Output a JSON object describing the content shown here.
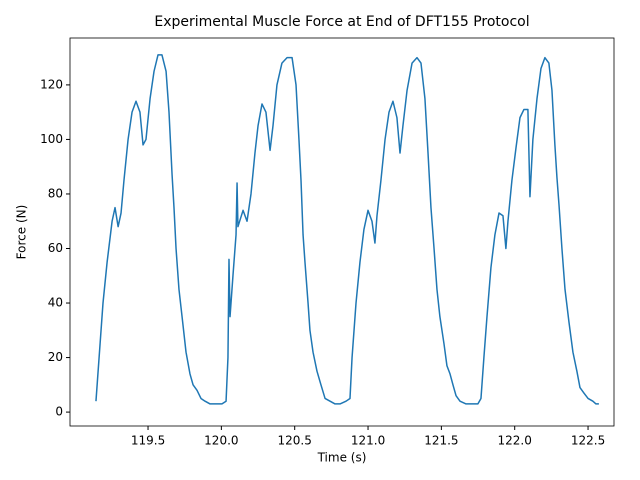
{
  "chart_data": {
    "type": "line",
    "title": "Experimental Muscle Force at End of DFT155 Protocol",
    "x_label": "Time (s)",
    "y_label": "Force (N)",
    "xlim": [
      118.968,
      122.677
    ],
    "ylim": [
      -5.1,
      137.2
    ],
    "xticks": [
      {
        "value": 119.5,
        "label": "119.5"
      },
      {
        "value": 120.0,
        "label": "120.0"
      },
      {
        "value": 120.5,
        "label": "120.5"
      },
      {
        "value": 121.0,
        "label": "121.0"
      },
      {
        "value": 121.5,
        "label": "121.5"
      },
      {
        "value": 122.0,
        "label": "122.0"
      },
      {
        "value": 122.5,
        "label": "122.5"
      }
    ],
    "yticks": [
      0,
      20,
      40,
      60,
      80,
      100,
      120
    ],
    "series": [
      {
        "color": "#1f77b4",
        "x": [
          119.145,
          119.173,
          119.193,
          119.221,
          119.255,
          119.275,
          119.296,
          119.316,
          119.336,
          119.364,
          119.391,
          119.418,
          119.445,
          119.466,
          119.486,
          119.514,
          119.541,
          119.568,
          119.595,
          119.623,
          119.643,
          119.664,
          119.677,
          119.691,
          119.711,
          119.732,
          119.759,
          119.786,
          119.807,
          119.834,
          119.861,
          119.889,
          119.923,
          119.957,
          120.004,
          120.032,
          120.045,
          120.052,
          120.059,
          120.079,
          120.1,
          120.107,
          120.113,
          120.148,
          120.175,
          120.202,
          120.229,
          120.25,
          120.277,
          120.304,
          120.332,
          120.352,
          120.379,
          120.413,
          120.448,
          120.482,
          120.509,
          120.529,
          120.543,
          120.557,
          120.57,
          120.591,
          120.604,
          120.625,
          120.652,
          120.679,
          120.707,
          120.741,
          120.775,
          120.809,
          120.85,
          120.877,
          120.891,
          120.918,
          120.945,
          120.972,
          121.0,
          121.027,
          121.047,
          121.061,
          121.088,
          121.116,
          121.143,
          121.17,
          121.197,
          121.218,
          121.238,
          121.266,
          121.3,
          121.334,
          121.361,
          121.388,
          121.409,
          121.429,
          121.45,
          121.47,
          121.49,
          121.518,
          121.538,
          121.559,
          121.579,
          121.6,
          121.627,
          121.668,
          121.709,
          121.749,
          121.77,
          121.79,
          121.811,
          121.838,
          121.865,
          121.893,
          121.92,
          121.94,
          121.954,
          121.981,
          122.009,
          122.036,
          122.063,
          122.09,
          122.104,
          122.124,
          122.152,
          122.179,
          122.206,
          122.233,
          122.254,
          122.274,
          122.288,
          122.302,
          122.322,
          122.343,
          122.37,
          122.397,
          122.424,
          122.445,
          122.472,
          122.5,
          122.533,
          122.554,
          122.574
        ],
        "values": [
          4,
          25,
          40,
          55,
          70,
          75,
          68,
          73,
          85,
          100,
          110,
          114,
          110,
          98,
          100,
          115,
          125,
          131,
          131,
          125,
          110,
          87,
          75,
          60,
          45,
          35,
          22,
          14,
          10,
          8,
          5,
          4,
          3,
          3,
          3,
          4,
          20,
          56,
          35,
          50,
          65,
          84,
          68,
          74,
          70,
          80,
          95,
          105,
          113,
          110,
          96,
          105,
          120,
          128,
          130,
          130,
          120,
          100,
          85,
          65,
          55,
          40,
          30,
          22,
          15,
          10,
          5,
          4,
          3,
          3,
          4,
          5,
          20,
          40,
          55,
          67,
          74,
          70,
          62,
          72,
          85,
          100,
          110,
          114,
          108,
          95,
          105,
          118,
          128,
          130,
          128,
          115,
          95,
          75,
          60,
          45,
          35,
          25,
          17,
          14,
          10,
          6,
          4,
          3,
          3,
          3,
          5,
          20,
          35,
          53,
          65,
          73,
          72,
          60,
          70,
          85,
          97,
          108,
          111,
          111,
          79,
          100,
          115,
          126,
          130,
          128,
          118,
          98,
          86,
          76,
          60,
          45,
          33,
          22,
          15,
          9,
          7,
          5,
          4,
          3,
          3
        ]
      }
    ]
  }
}
